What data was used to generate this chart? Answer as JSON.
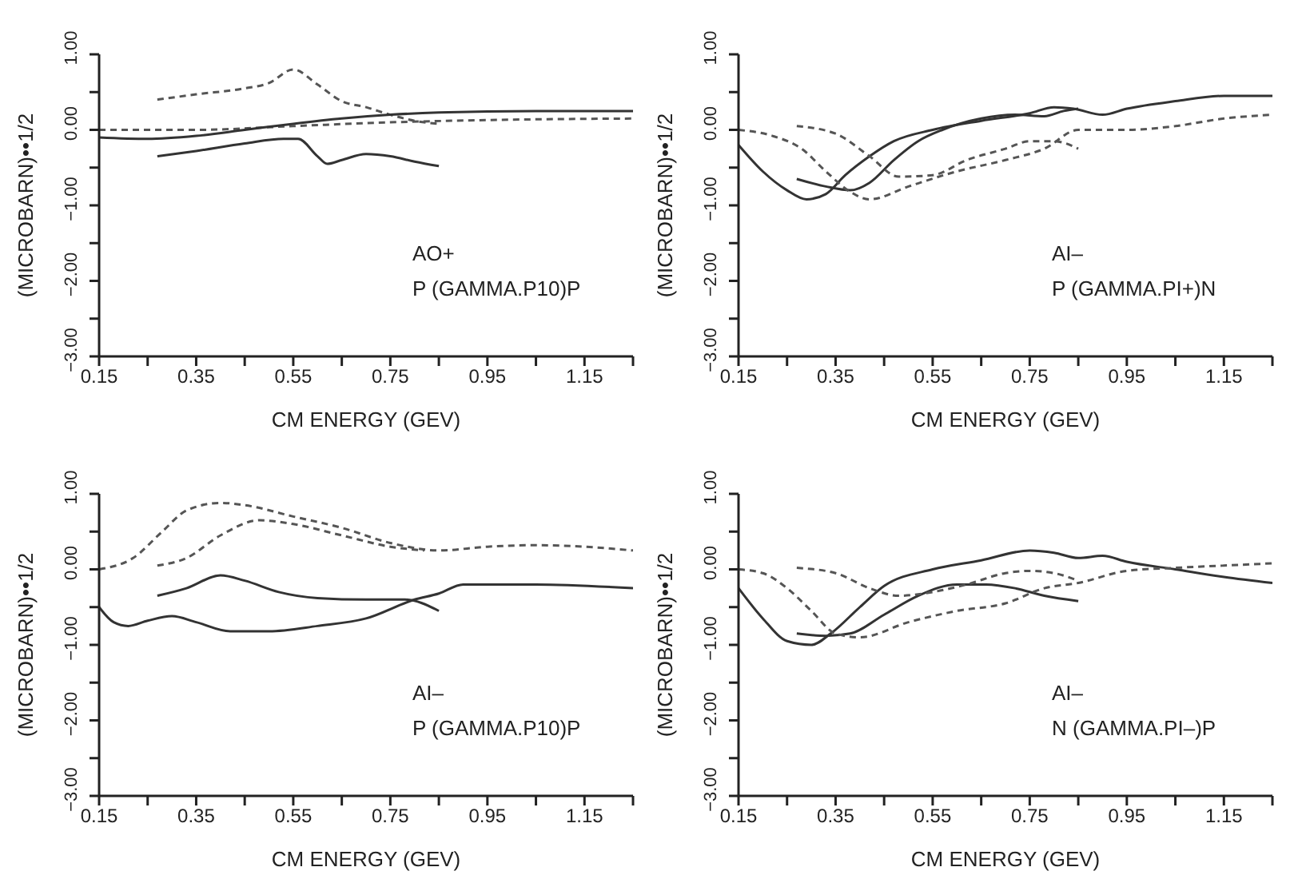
{
  "chart_data": [
    {
      "type": "line",
      "xlabel": "CM ENERGY (GEV)",
      "ylabel": "(MICROBARN)••1/2",
      "annotations": [
        "AO+",
        "P (GAMMA.P10)P"
      ],
      "xlim": [
        0.15,
        1.25
      ],
      "ylim": [
        -3,
        1
      ],
      "xticks": [
        {
          "value": 0.15,
          "label": "0.15"
        },
        {
          "value": 0.25,
          "label": null
        },
        {
          "value": 0.35,
          "label": "0.35"
        },
        {
          "value": 0.45,
          "label": null
        },
        {
          "value": 0.55,
          "label": "0.55"
        },
        {
          "value": 0.65,
          "label": null
        },
        {
          "value": 0.75,
          "label": "0.75"
        },
        {
          "value": 0.85,
          "label": null
        },
        {
          "value": 0.95,
          "label": "0.95"
        },
        {
          "value": 1.05,
          "label": null
        },
        {
          "value": 1.15,
          "label": "1.15"
        },
        {
          "value": 1.25,
          "label": null
        }
      ],
      "yticks": [
        {
          "value": -3,
          "label": "−3.00"
        },
        {
          "value": -2.5,
          "label": null
        },
        {
          "value": -2,
          "label": "−2.00"
        },
        {
          "value": -1.5,
          "label": null
        },
        {
          "value": -1,
          "label": "−1.00"
        },
        {
          "value": -0.5,
          "label": null
        },
        {
          "value": 0,
          "label": "0.00"
        },
        {
          "value": 0.5,
          "label": null
        },
        {
          "value": 1,
          "label": "1.00"
        }
      ],
      "series": [
        {
          "color": "#555555",
          "line_style": "dashed",
          "x": [
            0.27,
            0.35,
            0.45,
            0.5,
            0.55,
            0.6,
            0.65,
            0.7,
            0.75,
            0.8,
            0.85
          ],
          "values": [
            0.4,
            0.47,
            0.55,
            0.62,
            0.8,
            0.6,
            0.38,
            0.3,
            0.2,
            0.12,
            0.08
          ]
        },
        {
          "color": "#555555",
          "line_style": "dashed",
          "x": [
            0.15,
            0.35,
            0.55,
            0.75,
            0.95,
            1.25
          ],
          "values": [
            0,
            0,
            0.05,
            0.1,
            0.13,
            0.15
          ]
        },
        {
          "color": "#333333",
          "line_style": "solid",
          "x": [
            0.15,
            0.25,
            0.35,
            0.45,
            0.55,
            0.65,
            0.75,
            0.85,
            1.05,
            1.25
          ],
          "values": [
            -0.1,
            -0.12,
            -0.08,
            0,
            0.08,
            0.15,
            0.2,
            0.23,
            0.25,
            0.25
          ]
        },
        {
          "color": "#333333",
          "line_style": "solid",
          "x": [
            0.27,
            0.35,
            0.45,
            0.53,
            0.56,
            0.6,
            0.62,
            0.65,
            0.7,
            0.75,
            0.8,
            0.85
          ],
          "values": [
            -0.35,
            -0.28,
            -0.18,
            -0.12,
            -0.12,
            -0.35,
            -0.45,
            -0.4,
            -0.32,
            -0.35,
            -0.42,
            -0.48
          ]
        }
      ]
    },
    {
      "type": "line",
      "xlabel": "CM ENERGY (GEV)",
      "ylabel": "(MICROBARN)••1/2",
      "annotations": [
        "AI–",
        "P (GAMMA.PI+)N"
      ],
      "xlim": [
        0.15,
        1.25
      ],
      "ylim": [
        -3,
        1
      ],
      "xticks": [
        {
          "value": 0.15,
          "label": "0.15"
        },
        {
          "value": 0.25,
          "label": null
        },
        {
          "value": 0.35,
          "label": "0.35"
        },
        {
          "value": 0.45,
          "label": null
        },
        {
          "value": 0.55,
          "label": "0.55"
        },
        {
          "value": 0.65,
          "label": null
        },
        {
          "value": 0.75,
          "label": "0.75"
        },
        {
          "value": 0.85,
          "label": null
        },
        {
          "value": 0.95,
          "label": "0.95"
        },
        {
          "value": 1.05,
          "label": null
        },
        {
          "value": 1.15,
          "label": "1.15"
        },
        {
          "value": 1.25,
          "label": null
        }
      ],
      "yticks": [
        {
          "value": -3,
          "label": "−3.00"
        },
        {
          "value": -2.5,
          "label": null
        },
        {
          "value": -2,
          "label": "−2.00"
        },
        {
          "value": -1.5,
          "label": null
        },
        {
          "value": -1,
          "label": "−1.00"
        },
        {
          "value": -0.5,
          "label": null
        },
        {
          "value": 0,
          "label": "0.00"
        },
        {
          "value": 0.5,
          "label": null
        },
        {
          "value": 1,
          "label": "1.00"
        }
      ],
      "series": [
        {
          "color": "#333333",
          "line_style": "solid",
          "x": [
            0.15,
            0.2,
            0.25,
            0.29,
            0.33,
            0.37,
            0.42,
            0.47,
            0.55,
            0.65,
            0.75,
            0.8,
            0.84,
            0.9,
            0.95,
            1.05,
            1.15,
            1.25
          ],
          "values": [
            -0.2,
            -0.55,
            -0.8,
            -0.92,
            -0.85,
            -0.6,
            -0.35,
            -0.15,
            0,
            0.12,
            0.22,
            0.3,
            0.28,
            0.2,
            0.28,
            0.38,
            0.45,
            0.45
          ]
        },
        {
          "color": "#333333",
          "line_style": "solid",
          "x": [
            0.27,
            0.33,
            0.38,
            0.42,
            0.47,
            0.52,
            0.57,
            0.65,
            0.72,
            0.78,
            0.82,
            0.85
          ],
          "values": [
            -0.65,
            -0.75,
            -0.8,
            -0.7,
            -0.4,
            -0.15,
            0,
            0.15,
            0.2,
            0.18,
            0.25,
            0.28
          ]
        },
        {
          "color": "#555555",
          "line_style": "dashed",
          "x": [
            0.15,
            0.22,
            0.28,
            0.33,
            0.38,
            0.42,
            0.5,
            0.6,
            0.7,
            0.78,
            0.85,
            0.95,
            1.05,
            1.15,
            1.25
          ],
          "values": [
            0,
            -0.08,
            -0.25,
            -0.55,
            -0.82,
            -0.92,
            -0.75,
            -0.55,
            -0.4,
            -0.25,
            0,
            0,
            0.05,
            0.15,
            0.2
          ]
        },
        {
          "color": "#555555",
          "line_style": "dashed",
          "x": [
            0.27,
            0.35,
            0.42,
            0.48,
            0.55,
            0.62,
            0.7,
            0.75,
            0.8,
            0.85
          ],
          "values": [
            0.05,
            -0.05,
            -0.35,
            -0.62,
            -0.6,
            -0.4,
            -0.25,
            -0.15,
            -0.15,
            -0.25
          ]
        }
      ]
    },
    {
      "type": "line",
      "xlabel": "CM ENERGY (GEV)",
      "ylabel": "(MICROBARN)••1/2",
      "annotations": [
        "AI–",
        "P (GAMMA.P10)P"
      ],
      "xlim": [
        0.15,
        1.25
      ],
      "ylim": [
        -3,
        1
      ],
      "xticks": [
        {
          "value": 0.15,
          "label": "0.15"
        },
        {
          "value": 0.25,
          "label": null
        },
        {
          "value": 0.35,
          "label": "0.35"
        },
        {
          "value": 0.45,
          "label": null
        },
        {
          "value": 0.55,
          "label": "0.55"
        },
        {
          "value": 0.65,
          "label": null
        },
        {
          "value": 0.75,
          "label": "0.75"
        },
        {
          "value": 0.85,
          "label": null
        },
        {
          "value": 0.95,
          "label": "0.95"
        },
        {
          "value": 1.05,
          "label": null
        },
        {
          "value": 1.15,
          "label": "1.15"
        },
        {
          "value": 1.25,
          "label": null
        }
      ],
      "yticks": [
        {
          "value": -3,
          "label": "−3.00"
        },
        {
          "value": -2.5,
          "label": null
        },
        {
          "value": -2,
          "label": "−2.00"
        },
        {
          "value": -1.5,
          "label": null
        },
        {
          "value": -1,
          "label": "−1.00"
        },
        {
          "value": -0.5,
          "label": null
        },
        {
          "value": 0,
          "label": "0.00"
        },
        {
          "value": 0.5,
          "label": null
        },
        {
          "value": 1,
          "label": "1.00"
        }
      ],
      "series": [
        {
          "color": "#555555",
          "line_style": "dashed",
          "x": [
            0.15,
            0.22,
            0.28,
            0.33,
            0.4,
            0.45,
            0.55,
            0.65,
            0.75,
            0.85,
            0.95,
            1.05,
            1.15,
            1.25
          ],
          "values": [
            0,
            0.15,
            0.5,
            0.78,
            0.88,
            0.85,
            0.7,
            0.55,
            0.35,
            0.25,
            0.3,
            0.32,
            0.3,
            0.25
          ]
        },
        {
          "color": "#555555",
          "line_style": "dashed",
          "x": [
            0.27,
            0.33,
            0.4,
            0.48,
            0.55,
            0.65,
            0.75,
            0.82
          ],
          "values": [
            0.05,
            0.15,
            0.45,
            0.65,
            0.6,
            0.45,
            0.3,
            0.25
          ]
        },
        {
          "color": "#333333",
          "line_style": "solid",
          "x": [
            0.27,
            0.33,
            0.4,
            0.45,
            0.52,
            0.6,
            0.7,
            0.78,
            0.85
          ],
          "values": [
            -0.35,
            -0.25,
            -0.08,
            -0.15,
            -0.3,
            -0.38,
            -0.4,
            -0.4,
            -0.55
          ]
        },
        {
          "color": "#333333",
          "line_style": "solid",
          "x": [
            0.15,
            0.18,
            0.21,
            0.25,
            0.3,
            0.35,
            0.42,
            0.5,
            0.6,
            0.7,
            0.8,
            0.85,
            0.9,
            1.05,
            1.25
          ],
          "values": [
            -0.5,
            -0.7,
            -0.75,
            -0.68,
            -0.62,
            -0.7,
            -0.82,
            -0.82,
            -0.75,
            -0.65,
            -0.4,
            -0.32,
            -0.2,
            -0.2,
            -0.25
          ]
        }
      ]
    },
    {
      "type": "line",
      "xlabel": "CM ENERGY (GEV)",
      "ylabel": "(MICROBARN)••1/2",
      "annotations": [
        "AI–",
        "N (GAMMA.PI–)P"
      ],
      "xlim": [
        0.15,
        1.25
      ],
      "ylim": [
        -3,
        1
      ],
      "xticks": [
        {
          "value": 0.15,
          "label": "0.15"
        },
        {
          "value": 0.25,
          "label": null
        },
        {
          "value": 0.35,
          "label": "0.35"
        },
        {
          "value": 0.45,
          "label": null
        },
        {
          "value": 0.55,
          "label": "0.55"
        },
        {
          "value": 0.65,
          "label": null
        },
        {
          "value": 0.75,
          "label": "0.75"
        },
        {
          "value": 0.85,
          "label": null
        },
        {
          "value": 0.95,
          "label": "0.95"
        },
        {
          "value": 1.05,
          "label": null
        },
        {
          "value": 1.15,
          "label": "1.15"
        },
        {
          "value": 1.25,
          "label": null
        }
      ],
      "yticks": [
        {
          "value": -3,
          "label": "−3.00"
        },
        {
          "value": -2.5,
          "label": null
        },
        {
          "value": -2,
          "label": "−2.00"
        },
        {
          "value": -1.5,
          "label": null
        },
        {
          "value": -1,
          "label": "−1.00"
        },
        {
          "value": -0.5,
          "label": null
        },
        {
          "value": 0,
          "label": "0.00"
        },
        {
          "value": 0.5,
          "label": null
        },
        {
          "value": 1,
          "label": "1.00"
        }
      ],
      "series": [
        {
          "color": "#333333",
          "line_style": "solid",
          "x": [
            0.15,
            0.2,
            0.25,
            0.3,
            0.34,
            0.4,
            0.45,
            0.55,
            0.65,
            0.75,
            0.8,
            0.85,
            0.9,
            0.95,
            1.05,
            1.15,
            1.25
          ],
          "values": [
            -0.25,
            -0.65,
            -0.95,
            -1,
            -0.85,
            -0.5,
            -0.22,
            0,
            0.12,
            0.25,
            0.22,
            0.15,
            0.18,
            0.1,
            0,
            -0.1,
            -0.18
          ]
        },
        {
          "color": "#333333",
          "line_style": "solid",
          "x": [
            0.27,
            0.33,
            0.38,
            0.45,
            0.52,
            0.6,
            0.66,
            0.72,
            0.78,
            0.85
          ],
          "values": [
            -0.85,
            -0.88,
            -0.85,
            -0.6,
            -0.35,
            -0.2,
            -0.2,
            -0.25,
            -0.35,
            -0.42
          ]
        },
        {
          "color": "#555555",
          "line_style": "dashed",
          "x": [
            0.15,
            0.2,
            0.25,
            0.3,
            0.35,
            0.4,
            0.5,
            0.6,
            0.7,
            0.78,
            0.85,
            0.95,
            1.05,
            1.15,
            1.25
          ],
          "values": [
            0,
            -0.05,
            -0.25,
            -0.55,
            -0.85,
            -0.9,
            -0.7,
            -0.55,
            -0.45,
            -0.25,
            -0.18,
            -0.02,
            0.02,
            0.05,
            0.08
          ]
        },
        {
          "color": "#555555",
          "line_style": "dashed",
          "x": [
            0.27,
            0.35,
            0.42,
            0.48,
            0.55,
            0.62,
            0.7,
            0.75,
            0.8,
            0.85
          ],
          "values": [
            0.02,
            -0.05,
            -0.25,
            -0.35,
            -0.3,
            -0.2,
            -0.05,
            -0.02,
            -0.05,
            -0.15
          ]
        }
      ]
    }
  ]
}
